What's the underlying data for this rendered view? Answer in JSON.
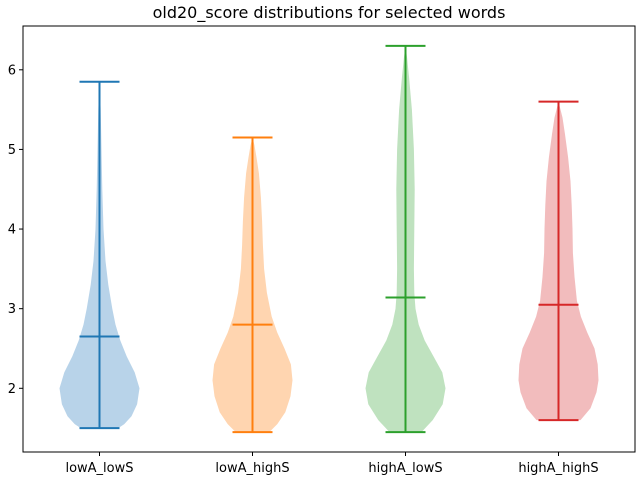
{
  "chart_data": {
    "type": "violin",
    "title": "old20_score distributions for selected words",
    "xlabel": "",
    "ylabel": "",
    "categories": [
      "lowA_lowS",
      "lowA_highS",
      "highA_lowS",
      "highA_highS"
    ],
    "ylim": [
      1.2,
      6.55
    ],
    "yticks": [
      2,
      3,
      4,
      5,
      6
    ],
    "grid": false,
    "series": [
      {
        "category": "lowA_lowS",
        "color": "#1f77b4",
        "fill": "#b8d3e9",
        "min": 1.5,
        "max": 5.85,
        "mean": 2.65,
        "profile": [
          [
            1.5,
            0.47
          ],
          [
            1.55,
            0.62
          ],
          [
            1.65,
            0.8
          ],
          [
            1.8,
            0.94
          ],
          [
            2.0,
            1.0
          ],
          [
            2.2,
            0.88
          ],
          [
            2.4,
            0.68
          ],
          [
            2.6,
            0.52
          ],
          [
            2.8,
            0.4
          ],
          [
            3.0,
            0.32
          ],
          [
            3.3,
            0.22
          ],
          [
            3.6,
            0.15
          ],
          [
            4.0,
            0.1
          ],
          [
            4.5,
            0.07
          ],
          [
            5.0,
            0.05
          ],
          [
            5.5,
            0.03
          ],
          [
            5.85,
            0.0
          ]
        ]
      },
      {
        "category": "lowA_highS",
        "color": "#ff7f0e",
        "fill": "#ffd5b0",
        "min": 1.45,
        "max": 5.15,
        "mean": 2.8,
        "profile": [
          [
            1.45,
            0.42
          ],
          [
            1.55,
            0.62
          ],
          [
            1.7,
            0.82
          ],
          [
            1.9,
            0.95
          ],
          [
            2.1,
            1.0
          ],
          [
            2.3,
            0.96
          ],
          [
            2.5,
            0.8
          ],
          [
            2.7,
            0.62
          ],
          [
            2.9,
            0.48
          ],
          [
            3.2,
            0.36
          ],
          [
            3.5,
            0.29
          ],
          [
            3.8,
            0.26
          ],
          [
            4.1,
            0.24
          ],
          [
            4.4,
            0.21
          ],
          [
            4.7,
            0.16
          ],
          [
            4.9,
            0.1
          ],
          [
            5.05,
            0.05
          ],
          [
            5.15,
            0.0
          ]
        ]
      },
      {
        "category": "highA_lowS",
        "color": "#2ca02c",
        "fill": "#bfe2bf",
        "min": 1.45,
        "max": 6.3,
        "mean": 3.14,
        "profile": [
          [
            1.45,
            0.4
          ],
          [
            1.6,
            0.68
          ],
          [
            1.8,
            0.93
          ],
          [
            2.0,
            1.0
          ],
          [
            2.2,
            0.92
          ],
          [
            2.4,
            0.7
          ],
          [
            2.6,
            0.48
          ],
          [
            2.8,
            0.33
          ],
          [
            3.0,
            0.25
          ],
          [
            3.2,
            0.22
          ],
          [
            3.5,
            0.21
          ],
          [
            4.0,
            0.22
          ],
          [
            4.5,
            0.23
          ],
          [
            5.0,
            0.21
          ],
          [
            5.5,
            0.16
          ],
          [
            5.9,
            0.09
          ],
          [
            6.15,
            0.04
          ],
          [
            6.3,
            0.0
          ]
        ]
      },
      {
        "category": "highA_highS",
        "color": "#d62728",
        "fill": "#f2bcbd",
        "min": 1.6,
        "max": 5.6,
        "mean": 3.05,
        "profile": [
          [
            1.6,
            0.55
          ],
          [
            1.75,
            0.8
          ],
          [
            1.95,
            0.95
          ],
          [
            2.1,
            1.0
          ],
          [
            2.3,
            0.98
          ],
          [
            2.5,
            0.9
          ],
          [
            2.7,
            0.72
          ],
          [
            2.9,
            0.56
          ],
          [
            3.1,
            0.46
          ],
          [
            3.4,
            0.4
          ],
          [
            3.7,
            0.36
          ],
          [
            4.0,
            0.35
          ],
          [
            4.3,
            0.33
          ],
          [
            4.6,
            0.3
          ],
          [
            4.9,
            0.24
          ],
          [
            5.2,
            0.16
          ],
          [
            5.4,
            0.1
          ],
          [
            5.6,
            0.0
          ]
        ]
      }
    ]
  }
}
